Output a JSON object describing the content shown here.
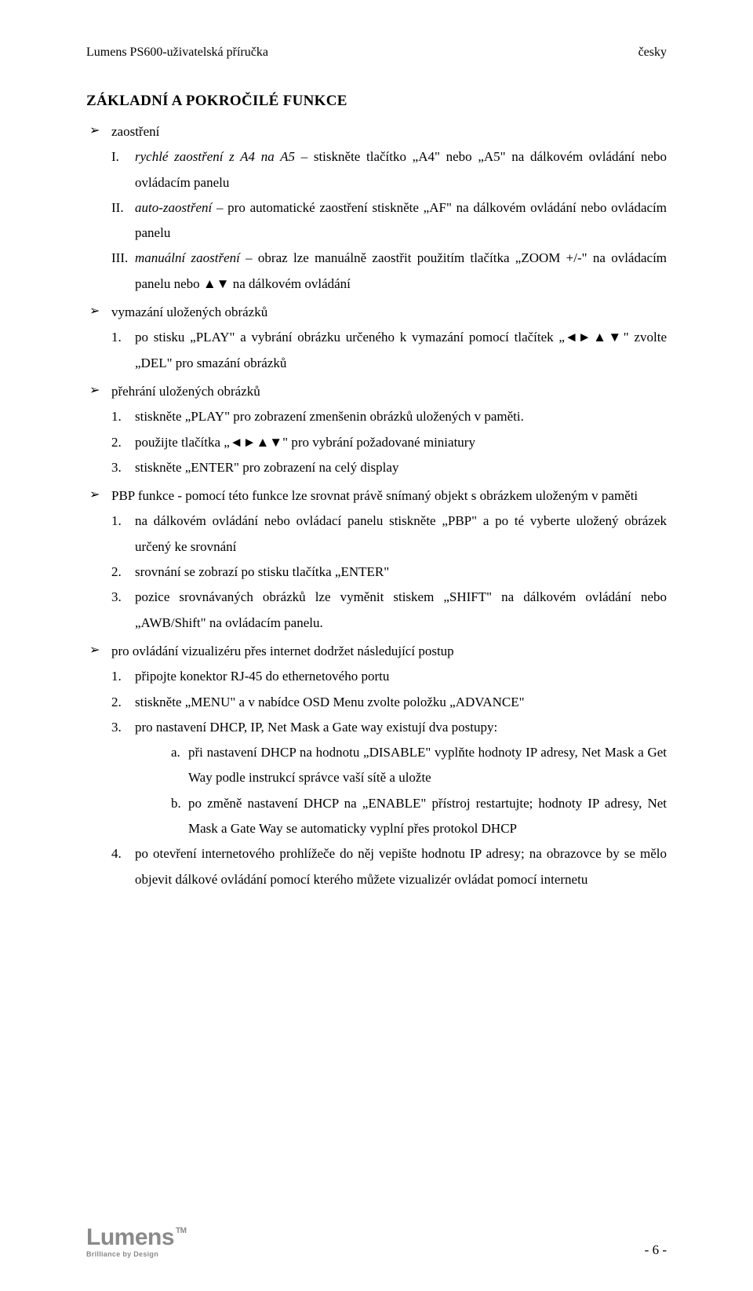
{
  "header": {
    "left": "Lumens PS600-uživatelská příručka",
    "right": "česky"
  },
  "heading": "ZÁKLADNÍ A POKROČILÉ FUNKCE",
  "items": [
    {
      "label": "zaostření",
      "sub": [
        {
          "m": "I.",
          "style": "italic",
          "text": "rychlé zaostření z A4 na A5 – stiskněte tlačítko „A4\" nebo „A5\" na dálkovém ovládání nebo ovládacím panelu"
        },
        {
          "m": "II.",
          "style": "italic",
          "text": "auto-zaostření – pro automatické zaostření stiskněte „AF\" na dálkovém ovládání nebo ovládacím panelu"
        },
        {
          "m": "III.",
          "style": "italic",
          "text": "manuální zaostření – obraz lze manuálně zaostřit použitím tlačítka „ZOOM +/-\" na ovládacím panelu nebo ▲▼ na dálkovém ovládání"
        }
      ]
    },
    {
      "label": "vymazání uložených obrázků",
      "sub": [
        {
          "m": "1.",
          "text": "po stisku „PLAY\" a vybrání obrázku určeného k vymazání pomocí tlačítek „◄►▲▼\" zvolte „DEL\" pro smazání obrázků"
        }
      ]
    },
    {
      "label": "přehrání uložených obrázků",
      "sub": [
        {
          "m": "1.",
          "text": "stiskněte „PLAY\" pro zobrazení zmenšenin obrázků uložených v paměti."
        },
        {
          "m": "2.",
          "text": "použijte tlačítka „◄►▲▼\" pro vybrání požadované miniatury"
        },
        {
          "m": "3.",
          "text": "stiskněte „ENTER\" pro zobrazení na celý display"
        }
      ]
    },
    {
      "label": "PBP funkce - pomocí této funkce lze srovnat právě snímaný objekt s obrázkem uloženým v paměti",
      "sub": [
        {
          "m": "1.",
          "text": "na dálkovém ovládání nebo ovládací panelu stiskněte „PBP\" a po té vyberte uložený obrázek určený ke srovnání"
        },
        {
          "m": "2.",
          "text": "srovnání se zobrazí po stisku tlačítka „ENTER\""
        },
        {
          "m": "3.",
          "text": "pozice srovnávaných obrázků lze vyměnit stiskem „SHIFT\" na dálkovém ovládání nebo „AWB/Shift\" na ovládacím panelu."
        }
      ]
    },
    {
      "label": "pro ovládání vizualizéru přes internet dodržet následující postup",
      "sub": [
        {
          "m": "1.",
          "text": "připojte konektor RJ-45 do ethernetového portu"
        },
        {
          "m": "2.",
          "text": "stiskněte „MENU\" a v nabídce OSD Menu zvolte položku „ADVANCE\""
        },
        {
          "m": "3.",
          "text": "pro nastavení DHCP, IP, Net Mask a Gate way existují dva postupy:",
          "sub3": [
            {
              "m3": "a.",
              "text": "při nastavení DHCP na hodnotu „DISABLE\" vyplňte hodnoty IP adresy, Net Mask a Get Way podle instrukcí správce vaší sítě a uložte"
            },
            {
              "m3": "b.",
              "text": "po změně nastavení DHCP na „ENABLE\" přístroj restartujte; hodnoty IP adresy, Net Mask a Gate Way se automaticky vyplní přes protokol DHCP"
            }
          ]
        },
        {
          "m": "4.",
          "text": "po otevření internetového prohlížeče do něj vepište hodnotu IP adresy; na obrazovce by se mělo objevit dálkové ovládání pomocí kterého můžete vizualizér ovládat pomocí internetu"
        }
      ]
    }
  ],
  "footer": {
    "logo_main": "Lumens",
    "logo_tm": "TM",
    "logo_tagline": "Brilliance by Design",
    "page": "- 6 -"
  }
}
